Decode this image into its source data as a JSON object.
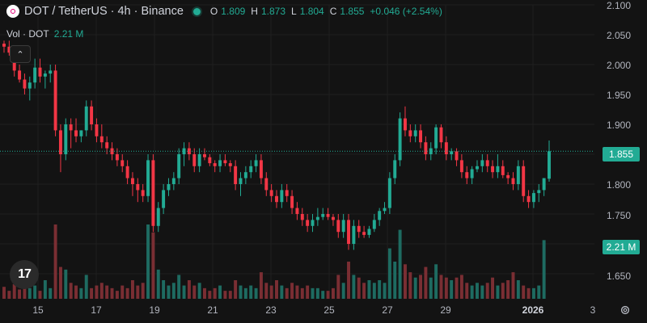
{
  "header": {
    "symbol_icon": "polkadot-icon",
    "title": "DOT / TetherUS · 4h · Binance",
    "status_icon": "market-open-icon",
    "ohlc": {
      "o_label": "O",
      "o_value": "1.809",
      "h_label": "H",
      "h_value": "1.873",
      "l_label": "L",
      "l_value": "1.804",
      "c_label": "C",
      "c_value": "1.855",
      "change": "+0.046 (+2.54%)"
    }
  },
  "volume_legend": {
    "label": "Vol · DOT",
    "value": "2.21 M"
  },
  "price_axis": {
    "ticks": [
      "2.100",
      "2.050",
      "2.000",
      "1.950",
      "1.900",
      "1.850",
      "1.800",
      "1.750",
      "1.650"
    ],
    "current_price": "1.855",
    "current_volume": "2.21 M"
  },
  "time_axis": {
    "ticks": [
      "15",
      "17",
      "19",
      "21",
      "23",
      "25",
      "27",
      "29",
      "2026",
      "3"
    ]
  },
  "colors": {
    "up": "#22ab94",
    "down": "#f23645",
    "background": "#131313",
    "volume_up": "#1e6b61",
    "volume_down": "#7a2e33"
  },
  "logo_text": "17",
  "chart_data": {
    "type": "candlestick",
    "title": "DOT / TetherUS · 4h · Binance",
    "x_ticks": [
      "15",
      "17",
      "19",
      "21",
      "23",
      "25",
      "27",
      "29",
      "2026",
      "3"
    ],
    "ylim": [
      1.62,
      2.1
    ],
    "grid": true,
    "candles": [
      [
        2.035,
        2.04,
        2.02,
        2.03
      ],
      [
        2.03,
        2.04,
        2.015,
        2.02
      ],
      [
        2.02,
        2.03,
        1.98,
        1.99
      ],
      [
        1.99,
        2.0,
        1.97,
        1.975
      ],
      [
        1.975,
        1.985,
        1.95,
        1.96
      ],
      [
        1.96,
        1.98,
        1.94,
        1.97
      ],
      [
        1.97,
        2.01,
        1.96,
        1.995
      ],
      [
        1.995,
        2.01,
        1.97,
        1.98
      ],
      [
        1.98,
        1.99,
        1.96,
        1.985
      ],
      [
        1.985,
        2.0,
        1.97,
        1.99
      ],
      [
        1.99,
        2.0,
        1.88,
        1.89
      ],
      [
        1.89,
        1.9,
        1.82,
        1.85
      ],
      [
        1.85,
        1.91,
        1.84,
        1.9
      ],
      [
        1.9,
        1.91,
        1.86,
        1.89
      ],
      [
        1.89,
        1.91,
        1.87,
        1.88
      ],
      [
        1.88,
        1.89,
        1.87,
        1.89
      ],
      [
        1.89,
        1.94,
        1.88,
        1.93
      ],
      [
        1.93,
        1.94,
        1.89,
        1.9
      ],
      [
        1.9,
        1.91,
        1.87,
        1.88
      ],
      [
        1.88,
        1.9,
        1.86,
        1.87
      ],
      [
        1.87,
        1.88,
        1.85,
        1.86
      ],
      [
        1.86,
        1.87,
        1.84,
        1.85
      ],
      [
        1.85,
        1.86,
        1.83,
        1.84
      ],
      [
        1.84,
        1.85,
        1.82,
        1.83
      ],
      [
        1.83,
        1.84,
        1.8,
        1.81
      ],
      [
        1.81,
        1.82,
        1.78,
        1.8
      ],
      [
        1.8,
        1.81,
        1.77,
        1.79
      ],
      [
        1.79,
        1.8,
        1.77,
        1.78
      ],
      [
        1.78,
        1.85,
        1.77,
        1.84
      ],
      [
        1.84,
        1.85,
        1.72,
        1.73
      ],
      [
        1.73,
        1.77,
        1.72,
        1.76
      ],
      [
        1.76,
        1.8,
        1.75,
        1.79
      ],
      [
        1.79,
        1.81,
        1.78,
        1.8
      ],
      [
        1.8,
        1.82,
        1.79,
        1.81
      ],
      [
        1.81,
        1.86,
        1.8,
        1.85
      ],
      [
        1.85,
        1.87,
        1.83,
        1.86
      ],
      [
        1.86,
        1.87,
        1.84,
        1.85
      ],
      [
        1.85,
        1.86,
        1.82,
        1.83
      ],
      [
        1.83,
        1.86,
        1.82,
        1.85
      ],
      [
        1.85,
        1.86,
        1.84,
        1.845
      ],
      [
        1.845,
        1.85,
        1.83,
        1.835
      ],
      [
        1.835,
        1.84,
        1.82,
        1.83
      ],
      [
        1.83,
        1.85,
        1.82,
        1.84
      ],
      [
        1.84,
        1.85,
        1.83,
        1.835
      ],
      [
        1.835,
        1.84,
        1.82,
        1.83
      ],
      [
        1.83,
        1.84,
        1.79,
        1.8
      ],
      [
        1.8,
        1.82,
        1.78,
        1.81
      ],
      [
        1.81,
        1.83,
        1.8,
        1.82
      ],
      [
        1.82,
        1.84,
        1.81,
        1.83
      ],
      [
        1.83,
        1.85,
        1.82,
        1.84
      ],
      [
        1.84,
        1.85,
        1.8,
        1.81
      ],
      [
        1.81,
        1.82,
        1.78,
        1.79
      ],
      [
        1.79,
        1.8,
        1.77,
        1.78
      ],
      [
        1.78,
        1.79,
        1.76,
        1.77
      ],
      [
        1.77,
        1.8,
        1.76,
        1.79
      ],
      [
        1.79,
        1.8,
        1.77,
        1.78
      ],
      [
        1.78,
        1.79,
        1.75,
        1.76
      ],
      [
        1.76,
        1.77,
        1.74,
        1.75
      ],
      [
        1.75,
        1.76,
        1.73,
        1.74
      ],
      [
        1.74,
        1.75,
        1.72,
        1.73
      ],
      [
        1.73,
        1.75,
        1.72,
        1.74
      ],
      [
        1.74,
        1.76,
        1.73,
        1.745
      ],
      [
        1.745,
        1.76,
        1.74,
        1.75
      ],
      [
        1.75,
        1.76,
        1.74,
        1.745
      ],
      [
        1.745,
        1.75,
        1.73,
        1.74
      ],
      [
        1.74,
        1.75,
        1.71,
        1.72
      ],
      [
        1.72,
        1.75,
        1.71,
        1.74
      ],
      [
        1.74,
        1.75,
        1.69,
        1.7
      ],
      [
        1.7,
        1.74,
        1.69,
        1.73
      ],
      [
        1.73,
        1.74,
        1.71,
        1.72
      ],
      [
        1.72,
        1.73,
        1.71,
        1.715
      ],
      [
        1.715,
        1.73,
        1.71,
        1.725
      ],
      [
        1.725,
        1.75,
        1.72,
        1.74
      ],
      [
        1.74,
        1.76,
        1.73,
        1.755
      ],
      [
        1.755,
        1.77,
        1.75,
        1.76
      ],
      [
        1.76,
        1.82,
        1.75,
        1.81
      ],
      [
        1.81,
        1.85,
        1.8,
        1.84
      ],
      [
        1.84,
        1.92,
        1.83,
        1.91
      ],
      [
        1.91,
        1.93,
        1.88,
        1.89
      ],
      [
        1.89,
        1.9,
        1.87,
        1.88
      ],
      [
        1.88,
        1.9,
        1.87,
        1.89
      ],
      [
        1.89,
        1.9,
        1.86,
        1.87
      ],
      [
        1.87,
        1.88,
        1.84,
        1.85
      ],
      [
        1.85,
        1.87,
        1.84,
        1.86
      ],
      [
        1.86,
        1.9,
        1.85,
        1.895
      ],
      [
        1.895,
        1.9,
        1.86,
        1.87
      ],
      [
        1.87,
        1.88,
        1.84,
        1.85
      ],
      [
        1.85,
        1.86,
        1.84,
        1.855
      ],
      [
        1.855,
        1.86,
        1.83,
        1.84
      ],
      [
        1.84,
        1.85,
        1.81,
        1.82
      ],
      [
        1.82,
        1.83,
        1.8,
        1.81
      ],
      [
        1.81,
        1.83,
        1.8,
        1.825
      ],
      [
        1.825,
        1.84,
        1.82,
        1.83
      ],
      [
        1.83,
        1.85,
        1.82,
        1.84
      ],
      [
        1.84,
        1.85,
        1.82,
        1.83
      ],
      [
        1.83,
        1.84,
        1.81,
        1.82
      ],
      [
        1.82,
        1.85,
        1.81,
        1.83
      ],
      [
        1.83,
        1.84,
        1.81,
        1.815
      ],
      [
        1.815,
        1.82,
        1.8,
        1.81
      ],
      [
        1.81,
        1.82,
        1.79,
        1.8
      ],
      [
        1.8,
        1.84,
        1.79,
        1.83
      ],
      [
        1.83,
        1.84,
        1.77,
        1.78
      ],
      [
        1.78,
        1.79,
        1.76,
        1.77
      ],
      [
        1.77,
        1.79,
        1.76,
        1.785
      ],
      [
        1.785,
        1.8,
        1.77,
        1.79
      ],
      [
        1.79,
        1.81,
        1.78,
        1.81
      ],
      [
        1.809,
        1.873,
        1.804,
        1.855
      ]
    ],
    "volume": [
      0.45,
      0.3,
      0.55,
      0.35,
      0.6,
      0.4,
      0.5,
      0.3,
      0.7,
      0.4,
      2.8,
      1.2,
      1.1,
      0.6,
      0.5,
      0.4,
      0.9,
      0.4,
      0.5,
      0.6,
      0.5,
      0.4,
      0.3,
      0.5,
      0.4,
      0.7,
      0.5,
      0.6,
      2.8,
      2.5,
      1.1,
      0.7,
      0.5,
      0.6,
      0.9,
      0.5,
      0.7,
      0.5,
      0.6,
      0.4,
      0.3,
      0.4,
      0.5,
      0.3,
      0.3,
      0.7,
      0.5,
      0.4,
      0.5,
      0.4,
      1.0,
      0.6,
      0.5,
      0.7,
      0.5,
      0.4,
      0.6,
      0.5,
      0.4,
      0.5,
      0.4,
      0.4,
      0.3,
      0.3,
      0.4,
      0.9,
      0.6,
      1.4,
      0.9,
      0.8,
      0.6,
      0.7,
      0.6,
      0.7,
      0.6,
      1.9,
      1.4,
      2.6,
      1.3,
      1.0,
      0.8,
      0.9,
      1.2,
      0.8,
      1.3,
      0.9,
      0.8,
      0.7,
      0.8,
      0.9,
      0.6,
      0.5,
      0.6,
      0.5,
      0.6,
      0.8,
      0.5,
      0.6,
      0.7,
      1.0,
      0.7,
      0.5,
      0.4,
      0.4,
      0.5,
      2.21
    ]
  }
}
